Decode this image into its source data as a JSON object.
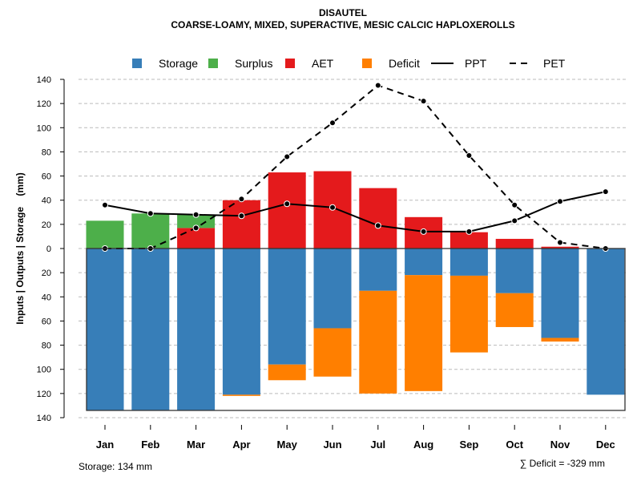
{
  "chart_data": {
    "type": "bar",
    "title": "DISAUTEL",
    "subtitle": "COARSE-LOAMY, MIXED, SUPERACTIVE, MESIC CALCIC HAPLOXEROLLS",
    "ylabel": "Inputs | Outputs | Storage    (mm)",
    "ylim": [
      -140,
      140
    ],
    "yticks": [
      140,
      120,
      100,
      80,
      60,
      40,
      20,
      0,
      -20,
      -40,
      -60,
      -80,
      -100,
      -120,
      -140
    ],
    "ytick_labels": [
      "140",
      "120",
      "100",
      "80",
      "60",
      "40",
      "20",
      "0",
      "20",
      "40",
      "60",
      "80",
      "100",
      "120",
      "140"
    ],
    "categories": [
      "Jan",
      "Feb",
      "Mar",
      "Apr",
      "May",
      "Jun",
      "Jul",
      "Aug",
      "Sep",
      "Oct",
      "Nov",
      "Dec"
    ],
    "legend": [
      {
        "label": "Storage",
        "color": "#377EB8",
        "kind": "box"
      },
      {
        "label": "Surplus",
        "color": "#4DAF4A",
        "kind": "box"
      },
      {
        "label": "AET",
        "color": "#E41A1C",
        "kind": "box"
      },
      {
        "label": "Deficit",
        "color": "#FF7F00",
        "kind": "box"
      },
      {
        "label": "PPT",
        "color": "#000000",
        "kind": "solid"
      },
      {
        "label": "PET",
        "color": "#000000",
        "kind": "dashed"
      }
    ],
    "legend_position": "top",
    "grid": true,
    "series": [
      {
        "name": "Storage",
        "values": [
          134,
          134,
          134,
          121,
          96,
          66,
          35,
          22,
          22.5,
          37,
          74,
          121
        ]
      },
      {
        "name": "Surplus",
        "values": [
          23,
          29,
          11,
          0,
          0,
          0,
          0,
          0,
          0,
          0,
          0,
          0
        ]
      },
      {
        "name": "AET",
        "values": [
          0,
          0,
          17,
          40,
          63,
          64,
          50,
          26,
          13.5,
          8,
          1.5,
          0
        ]
      },
      {
        "name": "Deficit",
        "values": [
          0,
          0,
          0,
          1,
          13,
          40,
          85,
          96,
          63.5,
          28,
          3,
          0
        ]
      },
      {
        "name": "PPT",
        "values": [
          36,
          29,
          28,
          27,
          37,
          34,
          19,
          14,
          14,
          23,
          39,
          47
        ]
      },
      {
        "name": "PET",
        "values": [
          0,
          0,
          17,
          41,
          76,
          104,
          135,
          122,
          77,
          36,
          5,
          0
        ]
      }
    ],
    "storage_capacity": 134,
    "footer_left": "Storage: 134 mm",
    "footer_right": "∑ Deficit = -329 mm"
  }
}
